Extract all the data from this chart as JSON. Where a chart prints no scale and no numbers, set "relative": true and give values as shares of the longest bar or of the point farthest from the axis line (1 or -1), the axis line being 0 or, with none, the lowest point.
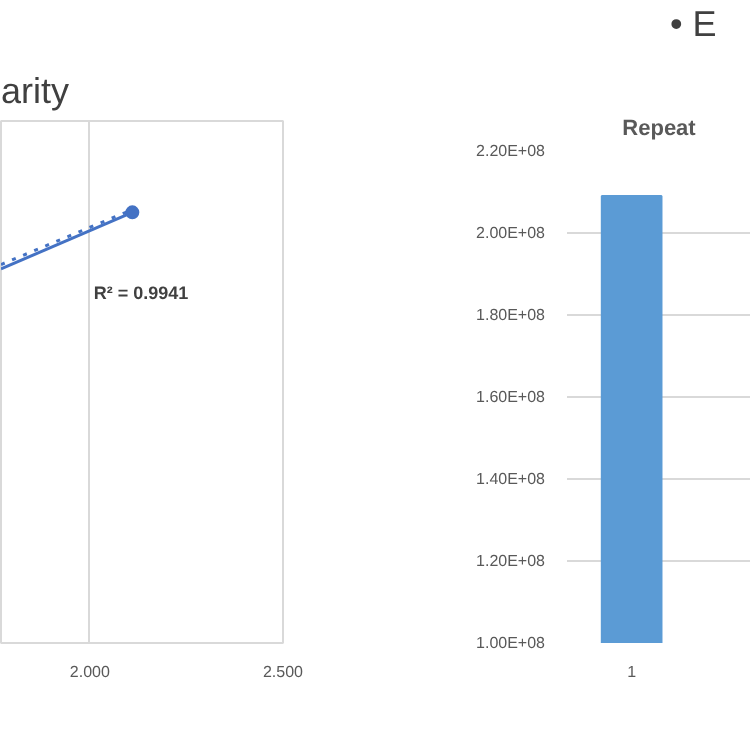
{
  "chart_data": [
    {
      "type": "line",
      "title": "arity",
      "x": [
        1.77,
        2.11
      ],
      "relative": true,
      "xlim": [
        1.77,
        2.5
      ],
      "xticks": [
        {
          "value": 2.0,
          "label": "2.000"
        },
        {
          "value": 2.5,
          "label": "2.500"
        }
      ],
      "grid": "x",
      "series": [
        {
          "color": "#4472c4",
          "values": [
            0.86,
            0.99
          ],
          "marker": "circle",
          "line_style": "solid"
        },
        {
          "type": "line",
          "color": "#4472c4",
          "x": [
            1.77,
            2.12
          ],
          "values": [
            0.87,
            1
          ],
          "marker": "none",
          "line_style": "dotted"
        }
      ],
      "annotations": [
        "R² = 0.9941"
      ]
    },
    {
      "type": "bar",
      "title": "Repeat",
      "subtitle": "• E",
      "categories": [
        "1"
      ],
      "values": [
        209000000
      ],
      "color": "#5b9bd5",
      "ylim": [
        100000000,
        220000000
      ],
      "yticks": [
        {
          "value": 100000000,
          "label": "1.00E+08"
        },
        {
          "value": 120000000,
          "label": "1.20E+08"
        },
        {
          "value": 140000000,
          "label": "1.40E+08"
        },
        {
          "value": 160000000,
          "label": "1.60E+08"
        },
        {
          "value": 180000000,
          "label": "1.80E+08"
        },
        {
          "value": 200000000,
          "label": "2.00E+08"
        },
        {
          "value": 220000000,
          "label": "2.20E+08"
        }
      ],
      "grid": "y"
    }
  ]
}
